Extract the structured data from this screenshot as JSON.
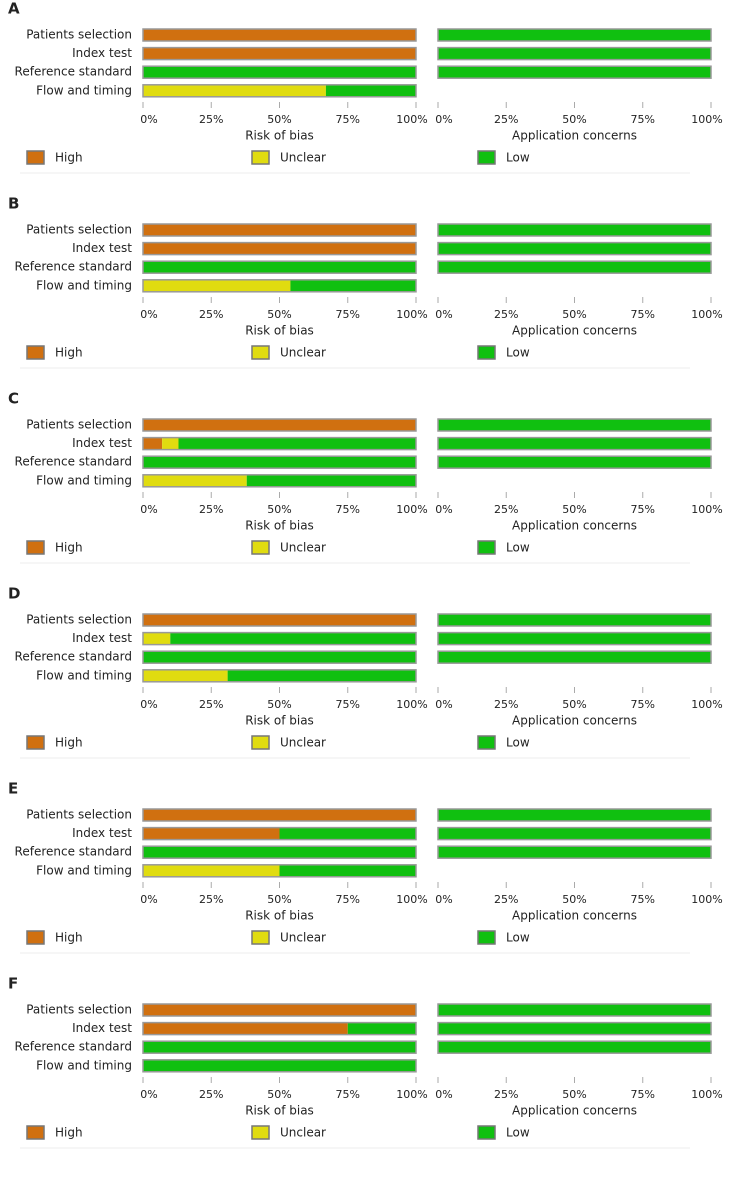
{
  "chart_data": [
    {
      "type": "stacked-barh",
      "label": "A",
      "categories": [
        "Patients selection",
        "Index test",
        "Reference standard",
        "Flow and timing"
      ],
      "panels": [
        {
          "xlabel": "Risk of bias",
          "xlim": [
            0,
            100
          ],
          "xticks": [
            {
              "value": 0,
              "label": "0%"
            },
            {
              "value": 25,
              "label": "25%"
            },
            {
              "value": 50,
              "label": "50%"
            },
            {
              "value": 75,
              "label": "75%"
            },
            {
              "value": 100,
              "label": "100%"
            }
          ],
          "series": [
            {
              "name": "High",
              "color": "#d07010",
              "values": [
                100,
                100,
                0,
                0
              ]
            },
            {
              "name": "Unclear",
              "color": "#e0dc10",
              "values": [
                0,
                0,
                0,
                67
              ]
            },
            {
              "name": "Low",
              "color": "#10c010",
              "values": [
                0,
                0,
                100,
                33
              ]
            }
          ]
        },
        {
          "xlabel": "Application concerns",
          "xlim": [
            0,
            100
          ],
          "xticks": [
            {
              "value": 0,
              "label": "0%"
            },
            {
              "value": 25,
              "label": "25%"
            },
            {
              "value": 50,
              "label": "50%"
            },
            {
              "value": 75,
              "label": "75%"
            },
            {
              "value": 100,
              "label": "100%"
            }
          ],
          "series": [
            {
              "name": "High",
              "color": "#d07010",
              "values": [
                0,
                0,
                0,
                null
              ]
            },
            {
              "name": "Unclear",
              "color": "#e0dc10",
              "values": [
                0,
                0,
                0,
                null
              ]
            },
            {
              "name": "Low",
              "color": "#10c010",
              "values": [
                100,
                100,
                100,
                null
              ]
            }
          ]
        }
      ]
    },
    {
      "type": "stacked-barh",
      "label": "B",
      "categories": [
        "Patients selection",
        "Index test",
        "Reference standard",
        "Flow and timing"
      ],
      "panels": [
        {
          "xlabel": "Risk of bias",
          "xlim": [
            0,
            100
          ],
          "xticks": [
            {
              "value": 0,
              "label": "0%"
            },
            {
              "value": 25,
              "label": "25%"
            },
            {
              "value": 50,
              "label": "50%"
            },
            {
              "value": 75,
              "label": "75%"
            },
            {
              "value": 100,
              "label": "100%"
            }
          ],
          "series": [
            {
              "name": "High",
              "color": "#d07010",
              "values": [
                100,
                100,
                0,
                0
              ]
            },
            {
              "name": "Unclear",
              "color": "#e0dc10",
              "values": [
                0,
                0,
                0,
                54
              ]
            },
            {
              "name": "Low",
              "color": "#10c010",
              "values": [
                0,
                0,
                100,
                46
              ]
            }
          ]
        },
        {
          "xlabel": "Application concerns",
          "xlim": [
            0,
            100
          ],
          "xticks": [
            {
              "value": 0,
              "label": "0%"
            },
            {
              "value": 25,
              "label": "25%"
            },
            {
              "value": 50,
              "label": "50%"
            },
            {
              "value": 75,
              "label": "75%"
            },
            {
              "value": 100,
              "label": "100%"
            }
          ],
          "series": [
            {
              "name": "High",
              "color": "#d07010",
              "values": [
                0,
                0,
                0,
                null
              ]
            },
            {
              "name": "Unclear",
              "color": "#e0dc10",
              "values": [
                0,
                0,
                0,
                null
              ]
            },
            {
              "name": "Low",
              "color": "#10c010",
              "values": [
                100,
                100,
                100,
                null
              ]
            }
          ]
        }
      ]
    },
    {
      "type": "stacked-barh",
      "label": "C",
      "categories": [
        "Patients selection",
        "Index test",
        "Reference standard",
        "Flow and timing"
      ],
      "panels": [
        {
          "xlabel": "Risk of bias",
          "xlim": [
            0,
            100
          ],
          "xticks": [
            {
              "value": 0,
              "label": "0%"
            },
            {
              "value": 25,
              "label": "25%"
            },
            {
              "value": 50,
              "label": "50%"
            },
            {
              "value": 75,
              "label": "75%"
            },
            {
              "value": 100,
              "label": "100%"
            }
          ],
          "series": [
            {
              "name": "High",
              "color": "#d07010",
              "values": [
                100,
                7,
                0,
                0
              ]
            },
            {
              "name": "Unclear",
              "color": "#e0dc10",
              "values": [
                0,
                6,
                0,
                38
              ]
            },
            {
              "name": "Low",
              "color": "#10c010",
              "values": [
                0,
                87,
                100,
                62
              ]
            }
          ]
        },
        {
          "xlabel": "Application concerns",
          "xlim": [
            0,
            100
          ],
          "xticks": [
            {
              "value": 0,
              "label": "0%"
            },
            {
              "value": 25,
              "label": "25%"
            },
            {
              "value": 50,
              "label": "50%"
            },
            {
              "value": 75,
              "label": "75%"
            },
            {
              "value": 100,
              "label": "100%"
            }
          ],
          "series": [
            {
              "name": "High",
              "color": "#d07010",
              "values": [
                0,
                0,
                0,
                null
              ]
            },
            {
              "name": "Unclear",
              "color": "#e0dc10",
              "values": [
                0,
                0,
                0,
                null
              ]
            },
            {
              "name": "Low",
              "color": "#10c010",
              "values": [
                100,
                100,
                100,
                null
              ]
            }
          ]
        }
      ]
    },
    {
      "type": "stacked-barh",
      "label": "D",
      "categories": [
        "Patients selection",
        "Index test",
        "Reference standard",
        "Flow and timing"
      ],
      "panels": [
        {
          "xlabel": "Risk of bias",
          "xlim": [
            0,
            100
          ],
          "xticks": [
            {
              "value": 0,
              "label": "0%"
            },
            {
              "value": 25,
              "label": "25%"
            },
            {
              "value": 50,
              "label": "50%"
            },
            {
              "value": 75,
              "label": "75%"
            },
            {
              "value": 100,
              "label": "100%"
            }
          ],
          "series": [
            {
              "name": "High",
              "color": "#d07010",
              "values": [
                100,
                0,
                0,
                0
              ]
            },
            {
              "name": "Unclear",
              "color": "#e0dc10",
              "values": [
                0,
                10,
                0,
                31
              ]
            },
            {
              "name": "Low",
              "color": "#10c010",
              "values": [
                0,
                90,
                100,
                69
              ]
            }
          ]
        },
        {
          "xlabel": "Application concerns",
          "xlim": [
            0,
            100
          ],
          "xticks": [
            {
              "value": 0,
              "label": "0%"
            },
            {
              "value": 25,
              "label": "25%"
            },
            {
              "value": 50,
              "label": "50%"
            },
            {
              "value": 75,
              "label": "75%"
            },
            {
              "value": 100,
              "label": "100%"
            }
          ],
          "series": [
            {
              "name": "High",
              "color": "#d07010",
              "values": [
                0,
                0,
                0,
                null
              ]
            },
            {
              "name": "Unclear",
              "color": "#e0dc10",
              "values": [
                0,
                0,
                0,
                null
              ]
            },
            {
              "name": "Low",
              "color": "#10c010",
              "values": [
                100,
                100,
                100,
                null
              ]
            }
          ]
        }
      ]
    },
    {
      "type": "stacked-barh",
      "label": "E",
      "categories": [
        "Patients selection",
        "Index test",
        "Reference standard",
        "Flow and timing"
      ],
      "panels": [
        {
          "xlabel": "Risk of bias",
          "xlim": [
            0,
            100
          ],
          "xticks": [
            {
              "value": 0,
              "label": "0%"
            },
            {
              "value": 25,
              "label": "25%"
            },
            {
              "value": 50,
              "label": "50%"
            },
            {
              "value": 75,
              "label": "75%"
            },
            {
              "value": 100,
              "label": "100%"
            }
          ],
          "series": [
            {
              "name": "High",
              "color": "#d07010",
              "values": [
                100,
                50,
                0,
                0
              ]
            },
            {
              "name": "Unclear",
              "color": "#e0dc10",
              "values": [
                0,
                0,
                0,
                50
              ]
            },
            {
              "name": "Low",
              "color": "#10c010",
              "values": [
                0,
                50,
                100,
                50
              ]
            }
          ]
        },
        {
          "xlabel": "Application concerns",
          "xlim": [
            0,
            100
          ],
          "xticks": [
            {
              "value": 0,
              "label": "0%"
            },
            {
              "value": 25,
              "label": "25%"
            },
            {
              "value": 50,
              "label": "50%"
            },
            {
              "value": 75,
              "label": "75%"
            },
            {
              "value": 100,
              "label": "100%"
            }
          ],
          "series": [
            {
              "name": "High",
              "color": "#d07010",
              "values": [
                0,
                0,
                0,
                null
              ]
            },
            {
              "name": "Unclear",
              "color": "#e0dc10",
              "values": [
                0,
                0,
                0,
                null
              ]
            },
            {
              "name": "Low",
              "color": "#10c010",
              "values": [
                100,
                100,
                100,
                null
              ]
            }
          ]
        }
      ]
    },
    {
      "type": "stacked-barh",
      "label": "F",
      "categories": [
        "Patients selection",
        "Index test",
        "Reference standard",
        "Flow and timing"
      ],
      "panels": [
        {
          "xlabel": "Risk of bias",
          "xlim": [
            0,
            100
          ],
          "xticks": [
            {
              "value": 0,
              "label": "0%"
            },
            {
              "value": 25,
              "label": "25%"
            },
            {
              "value": 50,
              "label": "50%"
            },
            {
              "value": 75,
              "label": "75%"
            },
            {
              "value": 100,
              "label": "100%"
            }
          ],
          "series": [
            {
              "name": "High",
              "color": "#d07010",
              "values": [
                100,
                75,
                0,
                0
              ]
            },
            {
              "name": "Unclear",
              "color": "#e0dc10",
              "values": [
                0,
                0,
                0,
                0
              ]
            },
            {
              "name": "Low",
              "color": "#10c010",
              "values": [
                0,
                25,
                100,
                100
              ]
            }
          ]
        },
        {
          "xlabel": "Application concerns",
          "xlim": [
            0,
            100
          ],
          "xticks": [
            {
              "value": 0,
              "label": "0%"
            },
            {
              "value": 25,
              "label": "25%"
            },
            {
              "value": 50,
              "label": "50%"
            },
            {
              "value": 75,
              "label": "75%"
            },
            {
              "value": 100,
              "label": "100%"
            }
          ],
          "series": [
            {
              "name": "High",
              "color": "#d07010",
              "values": [
                0,
                0,
                0,
                null
              ]
            },
            {
              "name": "Unclear",
              "color": "#e0dc10",
              "values": [
                0,
                0,
                0,
                null
              ]
            },
            {
              "name": "Low",
              "color": "#10c010",
              "values": [
                100,
                100,
                100,
                null
              ]
            }
          ]
        }
      ]
    }
  ]
}
